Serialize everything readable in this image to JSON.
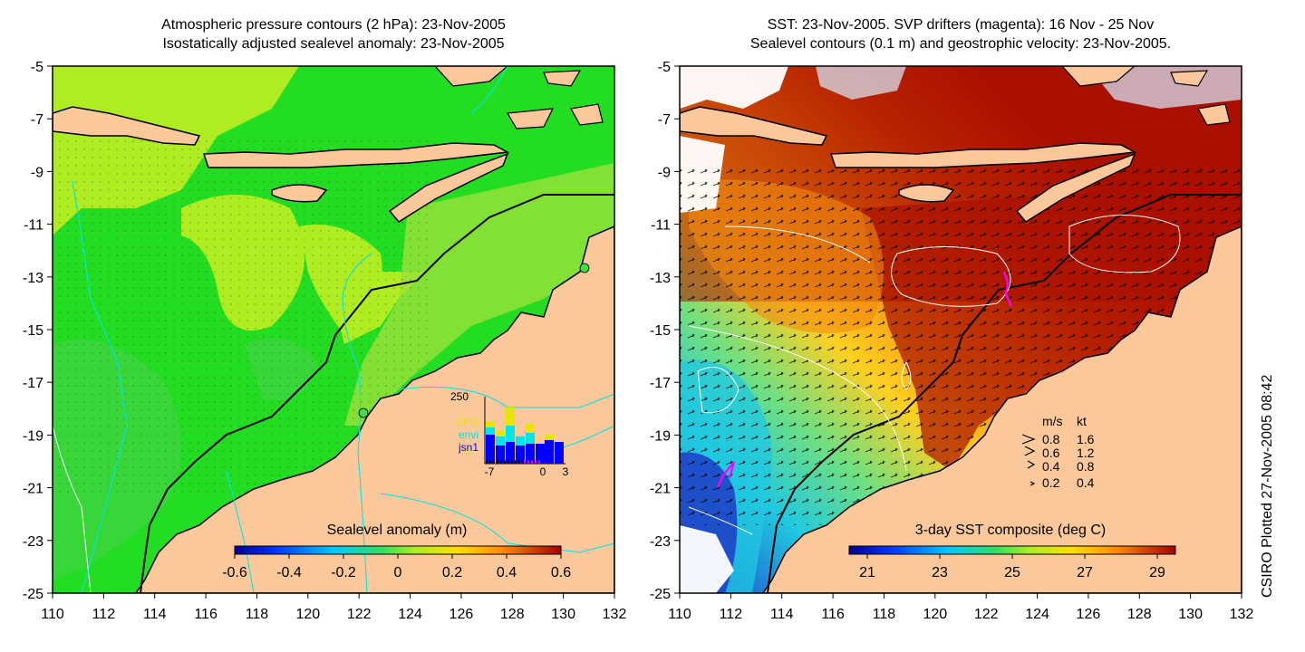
{
  "left_panel": {
    "title_line1": "Atmospheric pressure contours (2 hPa): 23-Nov-2005",
    "title_line2": "Isostatically adjusted sealevel anomaly: 23-Nov-2005",
    "y_ticks": [
      "-5",
      "-7",
      "-9",
      "-11",
      "-13",
      "-15",
      "-17",
      "-19",
      "-21",
      "-23",
      "-25"
    ],
    "x_ticks": [
      "110",
      "112",
      "114",
      "116",
      "118",
      "120",
      "122",
      "124",
      "126",
      "128",
      "130",
      "132"
    ],
    "colorbar": {
      "title": "Sealevel anomaly (m)",
      "labels": [
        "-0.6",
        "-0.4",
        "-0.2",
        "0",
        "0.2",
        "0.4",
        "0.6"
      ],
      "range": [
        -0.6,
        0.6
      ]
    },
    "inset": {
      "y_label": "250",
      "x_labels": [
        "-7",
        "0",
        "3"
      ],
      "legend": [
        {
          "label": "GFO",
          "color": "#e6e600"
        },
        {
          "label": "envi",
          "color": "#00e6e6"
        },
        {
          "label": "jsn1",
          "color": "#0000ff"
        }
      ]
    }
  },
  "right_panel": {
    "title_line1": "SST: 23-Nov-2005. SVP drifters (magenta): 16 Nov - 25 Nov",
    "title_line2": "Sealevel contours (0.1 m) and geostrophic velocity: 23-Nov-2005.",
    "y_ticks": [
      "-5",
      "-7",
      "-9",
      "-11",
      "-13",
      "-15",
      "-17",
      "-19",
      "-21",
      "-23",
      "-25"
    ],
    "x_ticks": [
      "110",
      "112",
      "114",
      "116",
      "118",
      "120",
      "122",
      "124",
      "126",
      "128",
      "130",
      "132"
    ],
    "colorbar": {
      "title": "3-day SST composite (deg C)",
      "labels": [
        "21",
        "23",
        "25",
        "27",
        "29"
      ],
      "range": [
        20.5,
        29.5
      ]
    },
    "velocity_key": {
      "header_ms": "m/s",
      "header_kt": "kt",
      "rows": [
        {
          "ms": "0.8",
          "kt": "1.6"
        },
        {
          "ms": "0.6",
          "kt": "1.2"
        },
        {
          "ms": "0.4",
          "kt": "0.8"
        },
        {
          "ms": "0.2",
          "kt": "0.4"
        }
      ]
    }
  },
  "credit": "CSIRO Plotted 27-Nov-2005 08:42",
  "colors": {
    "land": "#fbc89b",
    "ocean_green": "#22dd22",
    "ocean_yellowgreen": "#c8ee22",
    "sst_red": "#aa1000",
    "sst_orange": "#f08a10",
    "sst_cyan": "#20c8e0",
    "contour_cyan": "#00e6e6",
    "drifter": "#ff00ff"
  }
}
